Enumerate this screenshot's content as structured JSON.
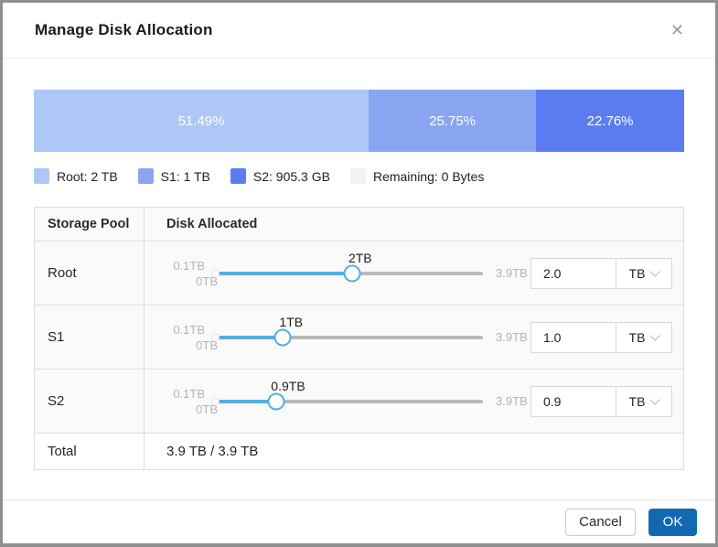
{
  "dialog": {
    "title": "Manage Disk Allocation",
    "close_icon": "✕"
  },
  "usage_bar": {
    "segments": [
      {
        "name": "Root",
        "label": "51.49%",
        "percent": 51.49,
        "color": "#adc8f7"
      },
      {
        "name": "S1",
        "label": "25.75%",
        "percent": 25.75,
        "color": "#8aa5f1"
      },
      {
        "name": "S2",
        "label": "22.76%",
        "percent": 22.76,
        "color": "#5b7cf0"
      }
    ]
  },
  "legend": [
    {
      "label": "Root: 2 TB",
      "color": "#adc8f7"
    },
    {
      "label": "S1: 1 TB",
      "color": "#8aa5f1"
    },
    {
      "label": "S2: 905.3 GB",
      "color": "#5b7cf0"
    },
    {
      "label": "Remaining: 0 Bytes",
      "color": "#f2f2f2"
    }
  ],
  "table": {
    "headers": {
      "pool": "Storage Pool",
      "allocated": "Disk Allocated"
    },
    "rows": [
      {
        "pool": "Root",
        "min_label": "0.1TB",
        "zero_label": "0TB",
        "max_label": "3.9TB",
        "value_label": "2TB",
        "percent": 51.3,
        "input_value": "2.0",
        "unit": "TB"
      },
      {
        "pool": "S1",
        "min_label": "0.1TB",
        "zero_label": "0TB",
        "max_label": "3.9TB",
        "value_label": "1TB",
        "percent": 25.6,
        "input_value": "1.0",
        "unit": "TB"
      },
      {
        "pool": "S2",
        "min_label": "0.1TB",
        "zero_label": "0TB",
        "max_label": "3.9TB",
        "value_label": "0.9TB",
        "percent": 23.1,
        "input_value": "0.9",
        "unit": "TB"
      }
    ],
    "total": {
      "label": "Total",
      "value": "3.9 TB / 3.9 TB"
    }
  },
  "footer": {
    "cancel_label": "Cancel",
    "ok_label": "OK"
  },
  "colors": {
    "slider_fill": "#55aee2",
    "slider_rest": "#b9b9b9",
    "ok_button": "#1268b1"
  }
}
